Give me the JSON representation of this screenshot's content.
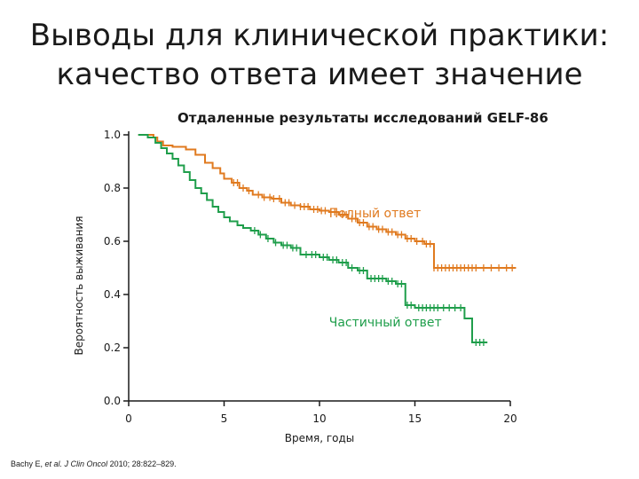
{
  "slide": {
    "title_line1": "Выводы для клинической практики:",
    "title_line2": "качество ответа имеет значение"
  },
  "citation": {
    "authors": "Bachy E, ",
    "et_al": "et al.",
    "journal": " J Clin Oncol ",
    "details": "2010; 28:822–829."
  },
  "colors": {
    "orange": "#e07a1f",
    "green": "#1f9e4b",
    "axis": "#1a1a1a"
  },
  "chart_data": {
    "type": "line",
    "title": "Отдаленные результаты исследований GELF-86",
    "xlabel": "Время, годы",
    "ylabel": "Вероятность выживания",
    "xlim": [
      0,
      20
    ],
    "ylim": [
      0,
      1
    ],
    "xticks": [
      "0",
      "5",
      "10",
      "15",
      "20"
    ],
    "yticks": [
      "0.0",
      "0.2",
      "0.4",
      "0.6",
      "0.8",
      "1.0"
    ],
    "grid": false,
    "series": [
      {
        "name": "Полный ответ",
        "color": "#e07a1f",
        "step": [
          [
            0.5,
            1.0
          ],
          [
            1.3,
            0.99
          ],
          [
            1.5,
            0.975
          ],
          [
            1.8,
            0.96
          ],
          [
            2.3,
            0.955
          ],
          [
            3.0,
            0.945
          ],
          [
            3.5,
            0.925
          ],
          [
            4.0,
            0.895
          ],
          [
            4.4,
            0.875
          ],
          [
            4.8,
            0.855
          ],
          [
            5.0,
            0.835
          ],
          [
            5.4,
            0.82
          ],
          [
            5.8,
            0.8
          ],
          [
            6.2,
            0.79
          ],
          [
            6.5,
            0.775
          ],
          [
            7.0,
            0.765
          ],
          [
            7.5,
            0.76
          ],
          [
            8.0,
            0.745
          ],
          [
            8.5,
            0.735
          ],
          [
            9.0,
            0.73
          ],
          [
            9.5,
            0.72
          ],
          [
            10.0,
            0.715
          ],
          [
            10.5,
            0.71
          ],
          [
            11.0,
            0.7
          ],
          [
            11.5,
            0.685
          ],
          [
            12.0,
            0.67
          ],
          [
            12.5,
            0.655
          ],
          [
            13.0,
            0.645
          ],
          [
            13.5,
            0.635
          ],
          [
            14.0,
            0.625
          ],
          [
            14.5,
            0.61
          ],
          [
            15.0,
            0.6
          ],
          [
            15.5,
            0.59
          ],
          [
            16.0,
            0.5
          ],
          [
            20.3,
            0.5
          ]
        ],
        "censor_x": [
          5.5,
          5.7,
          6.0,
          6.3,
          6.8,
          7.1,
          7.4,
          7.6,
          7.9,
          8.2,
          8.4,
          8.7,
          9.0,
          9.2,
          9.4,
          9.7,
          9.9,
          10.1,
          10.3,
          10.6,
          10.8,
          11.2,
          11.4,
          11.7,
          11.9,
          12.1,
          12.3,
          12.6,
          12.8,
          13.1,
          13.3,
          13.6,
          13.8,
          14.1,
          14.3,
          14.6,
          14.8,
          15.1,
          15.4,
          15.6,
          15.8,
          16.0,
          16.2,
          16.4,
          16.6,
          16.8,
          17.0,
          17.2,
          17.4,
          17.6,
          17.8,
          18.0,
          18.2,
          18.6,
          19.0,
          19.4,
          19.8,
          20.1
        ]
      },
      {
        "name": "Частичный ответ",
        "color": "#1f9e4b",
        "step": [
          [
            0.5,
            1.0
          ],
          [
            1.0,
            0.99
          ],
          [
            1.4,
            0.97
          ],
          [
            1.7,
            0.95
          ],
          [
            2.0,
            0.93
          ],
          [
            2.3,
            0.91
          ],
          [
            2.6,
            0.885
          ],
          [
            2.9,
            0.86
          ],
          [
            3.2,
            0.83
          ],
          [
            3.5,
            0.8
          ],
          [
            3.8,
            0.78
          ],
          [
            4.1,
            0.755
          ],
          [
            4.4,
            0.73
          ],
          [
            4.7,
            0.71
          ],
          [
            5.0,
            0.69
          ],
          [
            5.3,
            0.675
          ],
          [
            5.7,
            0.66
          ],
          [
            6.0,
            0.65
          ],
          [
            6.4,
            0.64
          ],
          [
            6.8,
            0.625
          ],
          [
            7.2,
            0.61
          ],
          [
            7.6,
            0.595
          ],
          [
            8.0,
            0.585
          ],
          [
            8.5,
            0.575
          ],
          [
            9.0,
            0.55
          ],
          [
            10.0,
            0.54
          ],
          [
            10.5,
            0.53
          ],
          [
            11.0,
            0.52
          ],
          [
            11.5,
            0.5
          ],
          [
            12.0,
            0.49
          ],
          [
            12.5,
            0.46
          ],
          [
            13.5,
            0.45
          ],
          [
            14.0,
            0.44
          ],
          [
            14.5,
            0.36
          ],
          [
            15.0,
            0.35
          ],
          [
            17.6,
            0.35
          ],
          [
            17.6,
            0.31
          ],
          [
            18.0,
            0.22
          ],
          [
            18.8,
            0.22
          ]
        ],
        "censor_x": [
          6.6,
          6.9,
          7.3,
          7.7,
          8.1,
          8.3,
          8.6,
          8.8,
          9.3,
          9.6,
          9.8,
          10.2,
          10.4,
          10.7,
          10.9,
          11.2,
          11.4,
          11.7,
          12.1,
          12.3,
          12.7,
          12.9,
          13.1,
          13.3,
          13.6,
          13.8,
          14.1,
          14.3,
          14.6,
          14.8,
          15.2,
          15.4,
          15.6,
          15.8,
          16.0,
          16.2,
          16.5,
          16.8,
          17.1,
          17.4,
          18.2,
          18.4,
          18.6
        ]
      }
    ],
    "annotations": [
      {
        "text": "Полный ответ",
        "x": 10.5,
        "y": 0.69,
        "series": 0
      },
      {
        "text": "Частичный ответ",
        "x": 10.5,
        "y": 0.28,
        "series": 1
      }
    ]
  }
}
